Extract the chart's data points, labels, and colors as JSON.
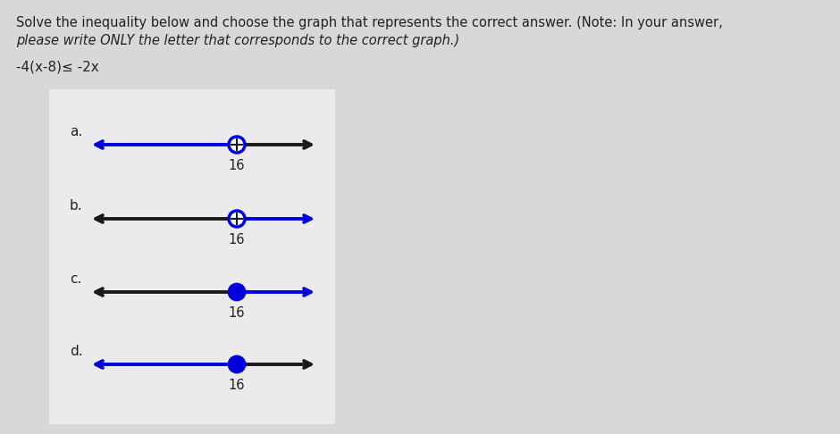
{
  "title_line1": "Solve the inequality below and choose the graph that represents the correct answer. (Note: In your answer,",
  "title_line2": "please write ONLY the letter that corresponds to the correct graph.)",
  "equation": "-4(x-8)≤ -2x",
  "bg_color": "#d8d8d8",
  "panel_color": "#e8e8eb",
  "text_color": "#222222",
  "blue": "#0000dd",
  "dark": "#1a1a1a",
  "options": [
    "a.",
    "b.",
    "c.",
    "d."
  ],
  "open_circle_options": [
    "a",
    "b"
  ],
  "filled_circle_options": [
    "c",
    "d"
  ],
  "left_blue_options": [
    "a",
    "d"
  ],
  "right_blue_options": [
    "b",
    "c"
  ],
  "point_label": "16"
}
